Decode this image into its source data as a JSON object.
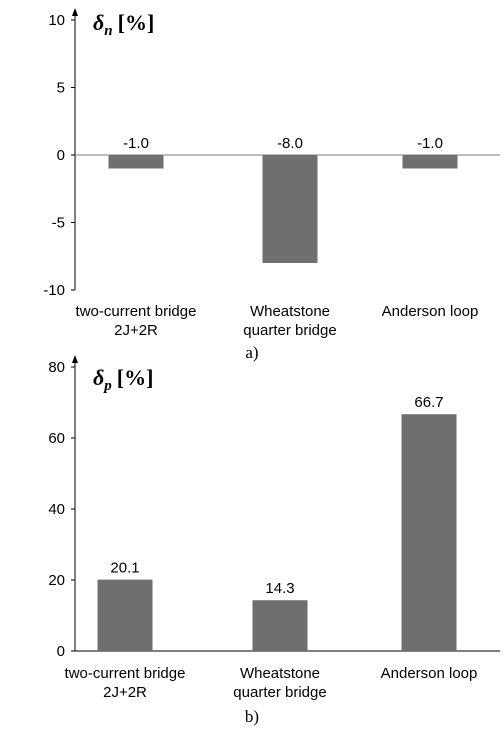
{
  "colors": {
    "bar": "#6f6f6f",
    "axis": "#000000",
    "zero_line": "#7f7f7f",
    "text": "#000000"
  },
  "chart_data": [
    {
      "type": "bar",
      "panel_label": "a)",
      "ylabel": {
        "symbol": "δ",
        "subscript": "n",
        "unit": "[%]"
      },
      "ylim": [
        -10,
        10
      ],
      "yticks": [
        10,
        5,
        0,
        -5,
        -10
      ],
      "ytick_labels": [
        "10",
        "5",
        "0",
        "-5",
        "-10"
      ],
      "grid": false,
      "legend": "none",
      "categories": [
        [
          "two-current bridge",
          "2J+2R"
        ],
        [
          "Wheatstone",
          "quarter bridge"
        ],
        [
          "Anderson loop"
        ]
      ],
      "values": [
        -1.0,
        -8.0,
        -1.0
      ],
      "data_labels": [
        "-1.0",
        "-8.0",
        "-1.0"
      ]
    },
    {
      "type": "bar",
      "panel_label": "b)",
      "ylabel": {
        "symbol": "δ",
        "subscript": "p",
        "unit": "[%]"
      },
      "ylim": [
        0,
        80
      ],
      "yticks": [
        80,
        60,
        40,
        20,
        0
      ],
      "ytick_labels": [
        "80",
        "60",
        "40",
        "20",
        "0"
      ],
      "grid": false,
      "legend": "none",
      "categories": [
        [
          "two-current bridge",
          "2J+2R"
        ],
        [
          "Wheatstone",
          "quarter bridge"
        ],
        [
          "Anderson loop"
        ]
      ],
      "values": [
        20.1,
        14.3,
        66.7
      ],
      "data_labels": [
        "20.1",
        "14.3",
        "66.7"
      ]
    }
  ]
}
